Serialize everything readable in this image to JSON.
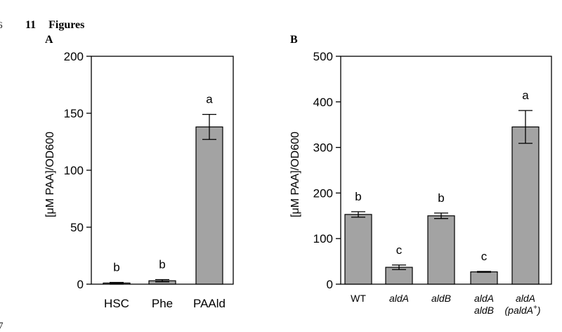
{
  "page": {
    "line_number_top": "6",
    "line_number_bottom": "7",
    "section_number": "11",
    "section_title": "Figures"
  },
  "colors": {
    "bar_fill": "#a3a3a3",
    "bar_stroke": "#000000"
  },
  "chart_data": [
    {
      "panel": "A",
      "type": "bar",
      "title": "",
      "xlabel": "",
      "ylabel": "[μM PAA]/OD600",
      "ylim": [
        0,
        200
      ],
      "yticks": [
        0,
        50,
        100,
        150,
        200
      ],
      "categories": [
        {
          "label": "HSC",
          "italic": false
        },
        {
          "label": "Phe",
          "italic": false
        },
        {
          "label": "PAAld",
          "italic": false
        }
      ],
      "values": [
        1,
        3,
        138
      ],
      "errors": [
        0.5,
        1,
        11
      ],
      "significance": [
        "b",
        "b",
        "a"
      ],
      "grid": false,
      "legend": "none"
    },
    {
      "panel": "B",
      "type": "bar",
      "title": "",
      "xlabel": "",
      "ylabel": "[μM PAA]/OD600",
      "ylim": [
        0,
        500
      ],
      "yticks": [
        0,
        100,
        200,
        300,
        400,
        500
      ],
      "categories": [
        {
          "label": "WT",
          "italic": false
        },
        {
          "label": "aldA",
          "italic": true
        },
        {
          "label": "aldB",
          "italic": true
        },
        {
          "label": "aldA aldB",
          "lines": [
            "aldA",
            "aldB"
          ],
          "italic": true
        },
        {
          "label": "aldA (paldA+)",
          "lines": [
            "aldA",
            "(paldA",
            "+",
            ")"
          ],
          "italic": true
        }
      ],
      "values": [
        153,
        37,
        150,
        27,
        345
      ],
      "errors": [
        6,
        5,
        6,
        1,
        36
      ],
      "significance": [
        "b",
        "c",
        "b",
        "c",
        "a"
      ],
      "grid": false,
      "legend": "none"
    }
  ]
}
